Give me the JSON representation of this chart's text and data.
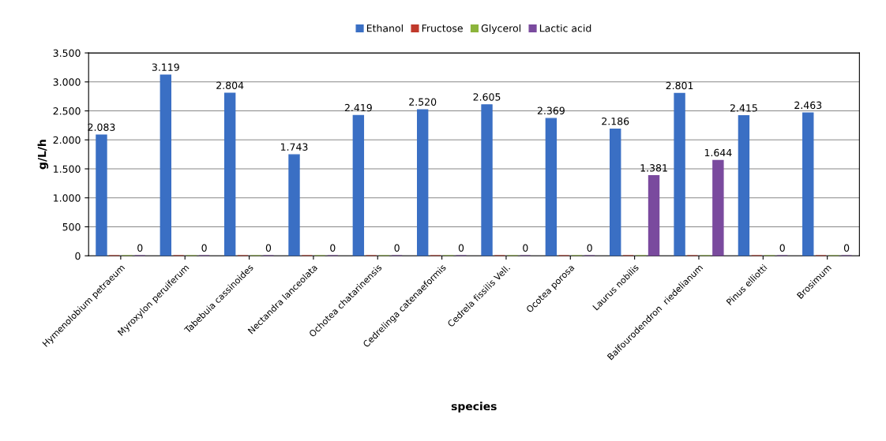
{
  "chart_data": {
    "type": "bar",
    "xlabel": "species",
    "ylabel": "g/L/h",
    "categories": [
      "Hymenolobium petraeum",
      "Myroxylon peruiferum",
      "Tabebuia cassinoides",
      "Nectandra lanceolata",
      "Ochotea chatarinensis",
      "Cedrelinga catenaeformis",
      "Cedrela fissilis Vell.",
      "Ocotea porosa",
      "Laurus nobilis",
      "Balfourodendron  riedelianum",
      "Pinus elliotti",
      "Brosimum"
    ],
    "series": [
      {
        "name": "Ethanol",
        "color": "#3a6fc4",
        "values": [
          2083,
          3119,
          2804,
          1743,
          2419,
          2520,
          2605,
          2369,
          2186,
          2801,
          2415,
          2463
        ],
        "value_labels": [
          "2.083",
          "3.119",
          "2.804",
          "1.743",
          "2.419",
          "2.520",
          "2.605",
          "2.369",
          "2.186",
          "2.801",
          "2.415",
          "2.463"
        ]
      },
      {
        "name": "Fructose",
        "color": "#c0392b",
        "values": [
          0,
          0,
          0,
          0,
          0,
          0,
          0,
          0,
          0,
          0,
          0,
          0
        ]
      },
      {
        "name": "Glycerol",
        "color": "#8cb43c",
        "values": [
          0,
          0,
          0,
          0,
          0,
          0,
          0,
          0,
          0,
          0,
          0,
          0
        ]
      },
      {
        "name": "Lactic acid",
        "color": "#7a4a9e",
        "values": [
          0,
          0,
          0,
          0,
          0,
          0,
          0,
          0,
          1381,
          1644,
          0,
          0
        ],
        "value_labels": [
          "0",
          "0",
          "0",
          "0",
          "0",
          "0",
          "0",
          "0",
          "1.381",
          "1.644",
          "0",
          "0"
        ]
      }
    ],
    "ylim": [
      0,
      3500
    ],
    "yticks": [
      {
        "value": 0,
        "label": "0"
      },
      {
        "value": 500,
        "label": "500"
      },
      {
        "value": 1000,
        "label": "1.000"
      },
      {
        "value": 1500,
        "label": "1.500"
      },
      {
        "value": 2000,
        "label": "2.000"
      },
      {
        "value": 2500,
        "label": "2.500"
      },
      {
        "value": 3000,
        "label": "3.000"
      },
      {
        "value": 3500,
        "label": "3.500"
      }
    ],
    "grid": "y",
    "legend": "top"
  }
}
